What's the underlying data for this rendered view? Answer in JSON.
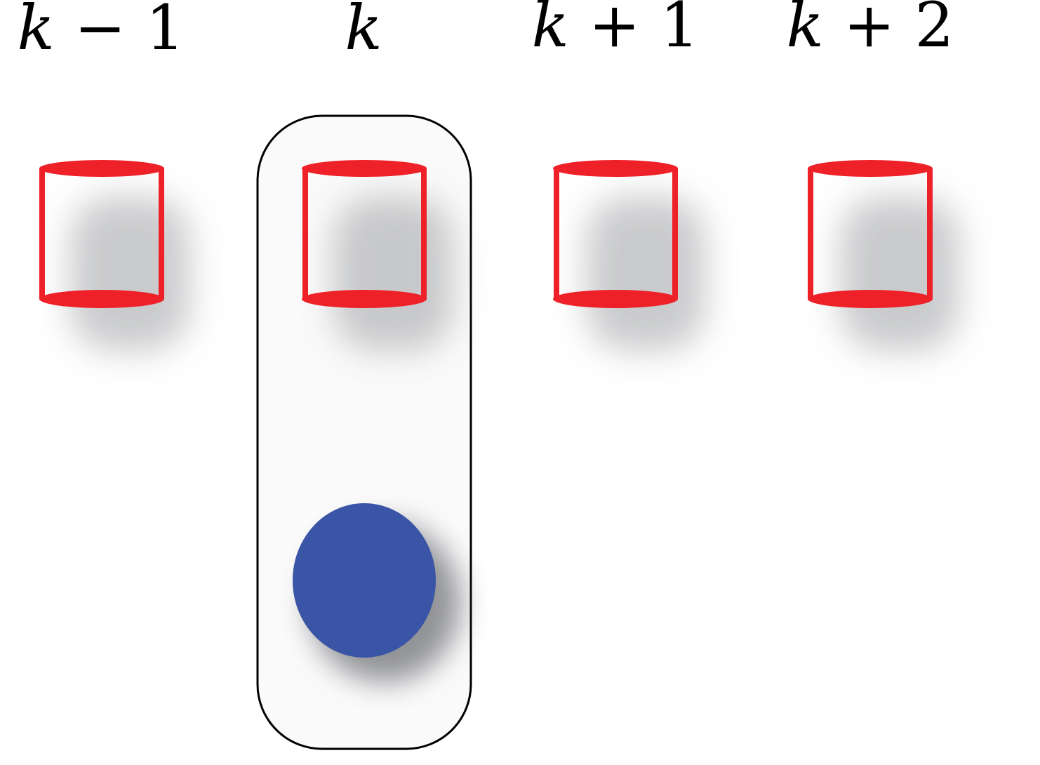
{
  "diagram": {
    "columns": [
      {
        "id": "k-minus-1",
        "label_var": "k",
        "label_rest": " − 1"
      },
      {
        "id": "k",
        "label_var": "k",
        "label_rest": ""
      },
      {
        "id": "k-plus-1",
        "label_var": "k",
        "label_rest": " + 1"
      },
      {
        "id": "k-plus-2",
        "label_var": "k",
        "label_rest": " + 2"
      }
    ],
    "highlighted_column": "k",
    "colors": {
      "cylinder": "#ee2028",
      "disc": "#3b55a6",
      "highlight_border": "#000000",
      "highlight_fill": "#fafafa",
      "shadow": "#8a8c90"
    },
    "icons": {
      "cylinder": "cylinder-icon",
      "disc": "filled-circle-icon"
    }
  }
}
